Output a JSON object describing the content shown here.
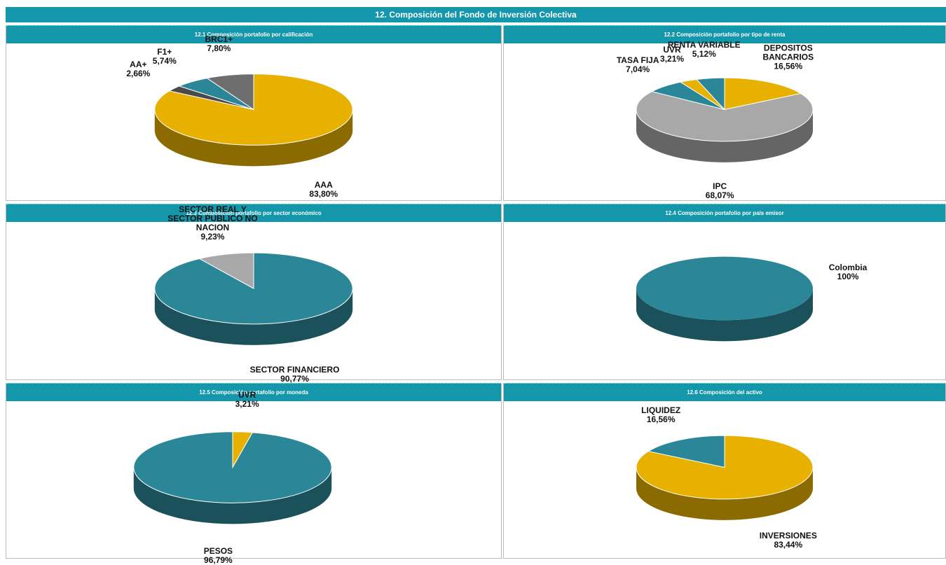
{
  "title": "12. Composición del Fondo de Inversión Colectiva",
  "chart_data": [
    {
      "type": "pie",
      "title": "12.1 Composición portafolio por calificación",
      "categories": [
        "AAA",
        "AA+",
        "F1+",
        "BRC1+"
      ],
      "values": [
        83.8,
        2.66,
        5.74,
        7.8
      ],
      "value_labels": [
        "83,80%",
        "2,66%",
        "5,74%",
        "7,80%"
      ],
      "colors": [
        "#e8b100",
        "#4a4a4a",
        "#2b8797",
        "#6e6e6e"
      ]
    },
    {
      "type": "pie",
      "title": "12.2 Composición portafolio por tipo de renta",
      "categories": [
        "DEPOSITOS BANCARIOS",
        "IPC",
        "TASA FIJA",
        "UVR",
        "RENTA VARIABLE"
      ],
      "values": [
        16.56,
        68.07,
        7.04,
        3.21,
        5.12
      ],
      "value_labels": [
        "16,56%",
        "68,07%",
        "7,04%",
        "3,21%",
        "5,12%"
      ],
      "colors": [
        "#e8b100",
        "#a8a8a8",
        "#2b8797",
        "#e8b100",
        "#2b8797"
      ]
    },
    {
      "type": "pie",
      "title": "12.3 Composición portafolio por sector económico",
      "categories": [
        "SECTOR FINANCIERO",
        "SECTOR REAL Y SECTOR PUBLICO NO NACION"
      ],
      "values": [
        90.77,
        9.23
      ],
      "value_labels": [
        "90,77%",
        "9,23%"
      ],
      "colors": [
        "#2b8797",
        "#a8a8a8"
      ]
    },
    {
      "type": "pie",
      "title": "12.4 Composición portafolio por país emisor",
      "categories": [
        "Colombia"
      ],
      "values": [
        100
      ],
      "value_labels": [
        "100%"
      ],
      "colors": [
        "#2b8797"
      ]
    },
    {
      "type": "pie",
      "title": "12.5 Composición portafolio por moneda",
      "categories": [
        "UVR",
        "PESOS"
      ],
      "values": [
        3.21,
        96.79
      ],
      "value_labels": [
        "3,21%",
        "96,79%"
      ],
      "colors": [
        "#e8b100",
        "#2b8797"
      ]
    },
    {
      "type": "pie",
      "title": "12.6 Composición del activo",
      "categories": [
        "INVERSIONES",
        "LIQUIDEZ"
      ],
      "values": [
        83.44,
        16.56
      ],
      "value_labels": [
        "83,44%",
        "16,56%"
      ],
      "colors": [
        "#e8b100",
        "#2b8797"
      ]
    }
  ]
}
